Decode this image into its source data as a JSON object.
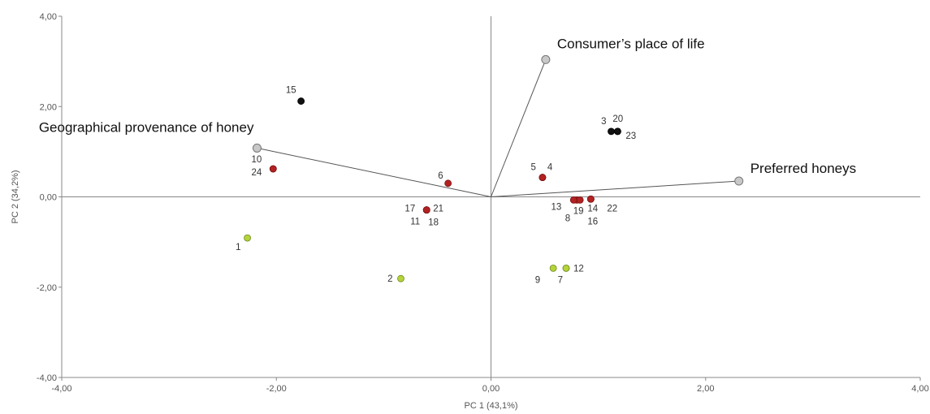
{
  "chart_data": {
    "type": "scatter",
    "title": "",
    "xlabel": "PC 1 (43,1%)",
    "ylabel": "PC 2 (34,2%)",
    "xlim": [
      -4,
      4
    ],
    "ylim": [
      -4,
      4
    ],
    "x_ticks": [
      "-4,00",
      "-2,00",
      "0,00",
      "2,00",
      "4,00"
    ],
    "y_ticks": [
      "-4,00",
      "-2,00",
      "0,00",
      "2,00",
      "4,00"
    ],
    "tick_values": [
      -4,
      -2,
      0,
      2,
      4
    ],
    "grid": false,
    "colors": {
      "black_group": "#111111",
      "red_group": "#b22222",
      "green_group": "#b5d33a",
      "vector_point": "#c8c8c8",
      "axis": "#888888"
    },
    "points": [
      {
        "label": "1",
        "x": -2.27,
        "y": -0.91,
        "group": "green_group"
      },
      {
        "label": "2",
        "x": -0.84,
        "y": -1.81,
        "group": "green_group"
      },
      {
        "label": "3",
        "x": 1.12,
        "y": 1.45,
        "group": "black_group"
      },
      {
        "label": "4",
        "x": 0.48,
        "y": 0.43,
        "group": "red_group"
      },
      {
        "label": "5",
        "x": 0.48,
        "y": 0.43,
        "group": "red_group"
      },
      {
        "label": "6",
        "x": -0.4,
        "y": 0.3,
        "group": "red_group"
      },
      {
        "label": "7",
        "x": 0.7,
        "y": -1.58,
        "group": "green_group"
      },
      {
        "label": "8",
        "x": 0.8,
        "y": -0.07,
        "group": "red_group"
      },
      {
        "label": "9",
        "x": 0.58,
        "y": -1.58,
        "group": "green_group"
      },
      {
        "label": "10",
        "x": -2.03,
        "y": 0.62,
        "group": "red_group"
      },
      {
        "label": "11",
        "x": -0.6,
        "y": -0.29,
        "group": "red_group"
      },
      {
        "label": "12",
        "x": 0.7,
        "y": -1.58,
        "group": "green_group"
      },
      {
        "label": "13",
        "x": 0.77,
        "y": -0.07,
        "group": "red_group"
      },
      {
        "label": "14",
        "x": 0.93,
        "y": -0.05,
        "group": "red_group"
      },
      {
        "label": "15",
        "x": -1.77,
        "y": 2.12,
        "group": "black_group"
      },
      {
        "label": "16",
        "x": 0.93,
        "y": -0.05,
        "group": "red_group"
      },
      {
        "label": "17",
        "x": -0.6,
        "y": -0.29,
        "group": "red_group"
      },
      {
        "label": "18",
        "x": -0.6,
        "y": -0.29,
        "group": "red_group"
      },
      {
        "label": "19",
        "x": 0.83,
        "y": -0.07,
        "group": "red_group"
      },
      {
        "label": "20",
        "x": 1.18,
        "y": 1.45,
        "group": "black_group"
      },
      {
        "label": "21",
        "x": -0.6,
        "y": -0.29,
        "group": "red_group"
      },
      {
        "label": "22",
        "x": 0.93,
        "y": -0.05,
        "group": "red_group"
      },
      {
        "label": "23",
        "x": 1.18,
        "y": 1.45,
        "group": "black_group"
      },
      {
        "label": "24",
        "x": -2.03,
        "y": 0.62,
        "group": "red_group"
      }
    ],
    "vectors": [
      {
        "label": "Consumer’s place of life",
        "x": 0.51,
        "y": 3.04
      },
      {
        "label": "Geographical provenance of honey",
        "x": -2.18,
        "y": 1.08
      },
      {
        "label": "Preferred honeys",
        "x": 2.31,
        "y": 0.35
      }
    ]
  }
}
